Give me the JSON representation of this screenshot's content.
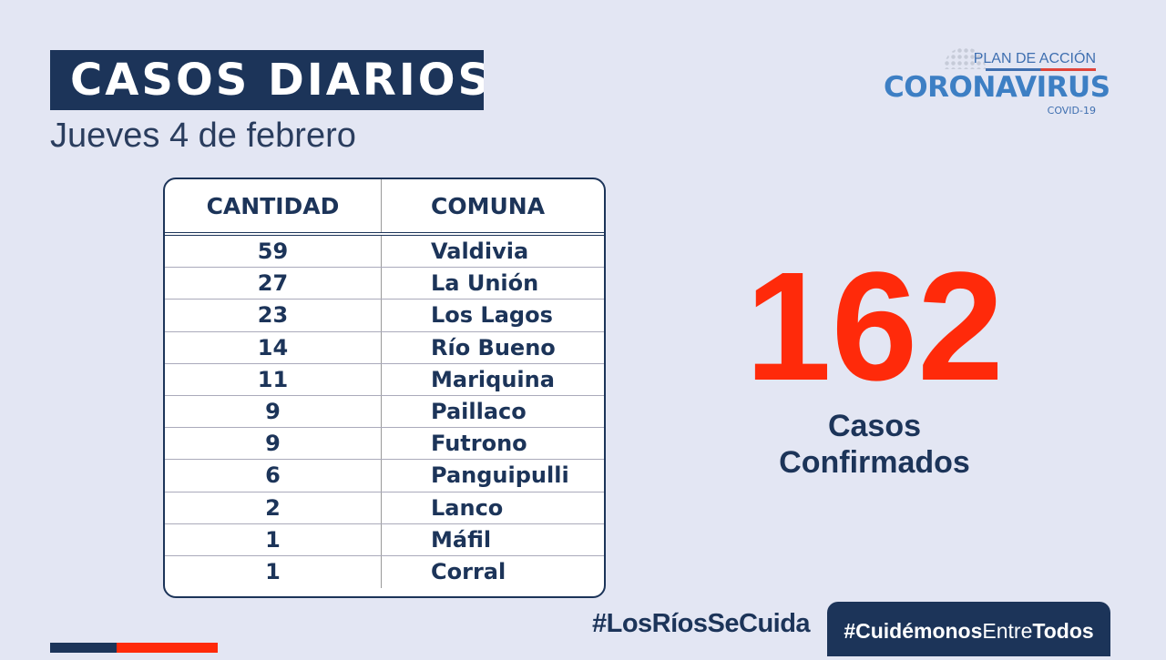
{
  "header": {
    "title": "CASOS DIARIOS",
    "date": "Jueves 4 de febrero"
  },
  "logo": {
    "line1": "PLAN DE ACCIÓN",
    "line2": "CORONAVIRUS",
    "line3": "COVID-19"
  },
  "table": {
    "columns": [
      "CANTIDAD",
      "COMUNA"
    ],
    "rows": [
      [
        "59",
        "Valdivia"
      ],
      [
        "27",
        "La Unión"
      ],
      [
        "23",
        "Los Lagos"
      ],
      [
        "14",
        "Río Bueno"
      ],
      [
        "11",
        "Mariquina"
      ],
      [
        "9",
        "Paillaco"
      ],
      [
        "9",
        "Futrono"
      ],
      [
        "6",
        "Panguipulli"
      ],
      [
        "2",
        "Lanco"
      ],
      [
        "1",
        "Máfil"
      ],
      [
        "1",
        "Corral"
      ]
    ]
  },
  "summary": {
    "total": "162",
    "label_line1": "Casos",
    "label_line2": "Confirmados"
  },
  "footer": {
    "hashtag1": "#LosRíosSeCuida",
    "hashtag2_a": "#Cuidémonos",
    "hashtag2_b": "Entre",
    "hashtag2_c": "Todos"
  },
  "colors": {
    "navy": "#1c3459",
    "red": "#ff2a0a",
    "background": "#e3e6f3"
  }
}
